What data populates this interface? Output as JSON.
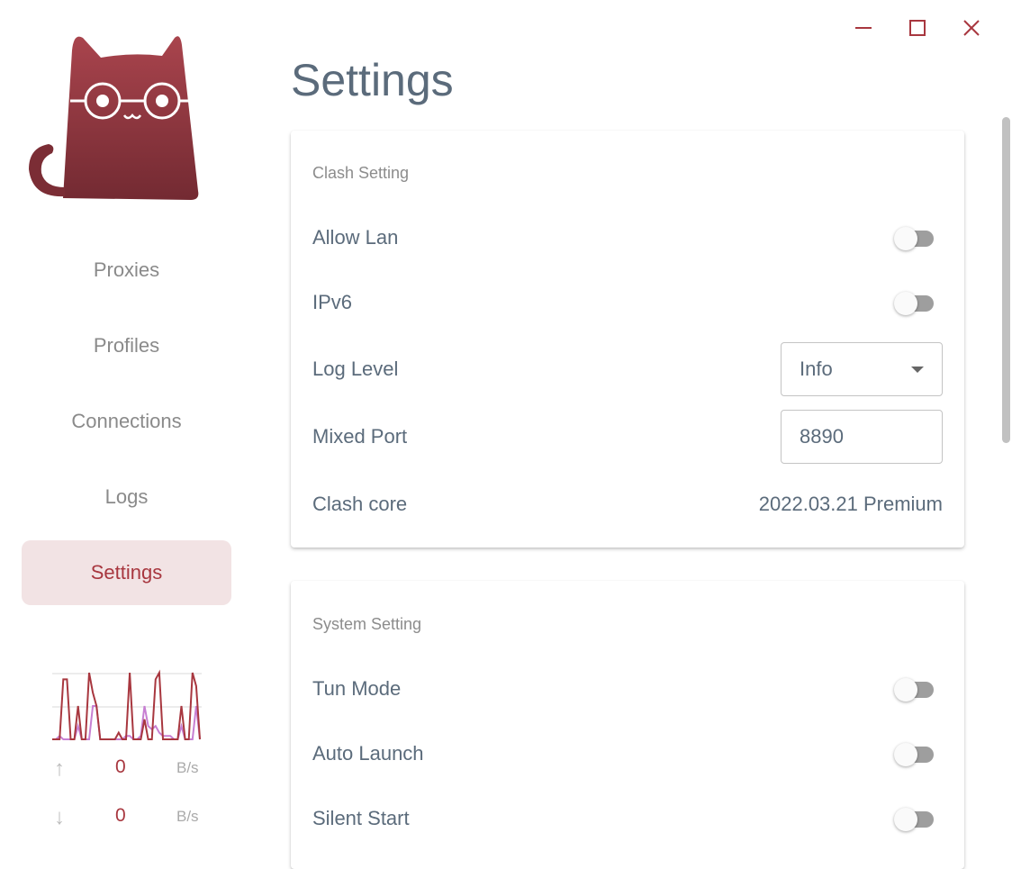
{
  "window": {
    "controls": [
      "minimize",
      "maximize",
      "close"
    ],
    "accent": "#a8373f"
  },
  "sidebar": {
    "logo": "clash-cat-logo",
    "items": [
      {
        "label": "Proxies",
        "active": false
      },
      {
        "label": "Profiles",
        "active": false
      },
      {
        "label": "Connections",
        "active": false
      },
      {
        "label": "Logs",
        "active": false
      },
      {
        "label": "Settings",
        "active": true
      }
    ],
    "traffic": {
      "upload": {
        "value": "0",
        "unit": "B/s"
      },
      "download": {
        "value": "0",
        "unit": "B/s"
      },
      "upload_series": [
        0,
        0,
        0,
        9,
        9,
        0,
        0,
        5,
        0,
        0,
        10,
        7,
        5,
        0,
        0,
        0,
        0,
        0,
        1,
        0,
        0,
        10,
        0,
        0,
        0,
        3,
        0,
        0,
        9,
        10,
        0,
        0,
        0,
        0,
        0,
        5,
        0,
        0,
        10,
        8,
        0
      ],
      "download_series": [
        0,
        0,
        0.5,
        0,
        0,
        0,
        0,
        2,
        0,
        0,
        0,
        5,
        5,
        0,
        0,
        0,
        0,
        0,
        0,
        0,
        0.5,
        0.5,
        0,
        0,
        0.5,
        5,
        2,
        1.5,
        2,
        1,
        0.5,
        0.5,
        0.5,
        0,
        0,
        2,
        0,
        0,
        0,
        5,
        0
      ]
    }
  },
  "page": {
    "title": "Settings"
  },
  "clash_setting": {
    "title": "Clash Setting",
    "allow_lan": {
      "label": "Allow Lan",
      "on": false
    },
    "ipv6": {
      "label": "IPv6",
      "on": false
    },
    "log_level": {
      "label": "Log Level",
      "value": "Info"
    },
    "mixed_port": {
      "label": "Mixed Port",
      "value": "8890"
    },
    "clash_core": {
      "label": "Clash core",
      "value": "2022.03.21 Premium"
    }
  },
  "system_setting": {
    "title": "System Setting",
    "tun_mode": {
      "label": "Tun Mode",
      "on": false
    },
    "auto_launch": {
      "label": "Auto Launch",
      "on": false
    },
    "silent_start": {
      "label": "Silent Start",
      "on": false
    }
  }
}
